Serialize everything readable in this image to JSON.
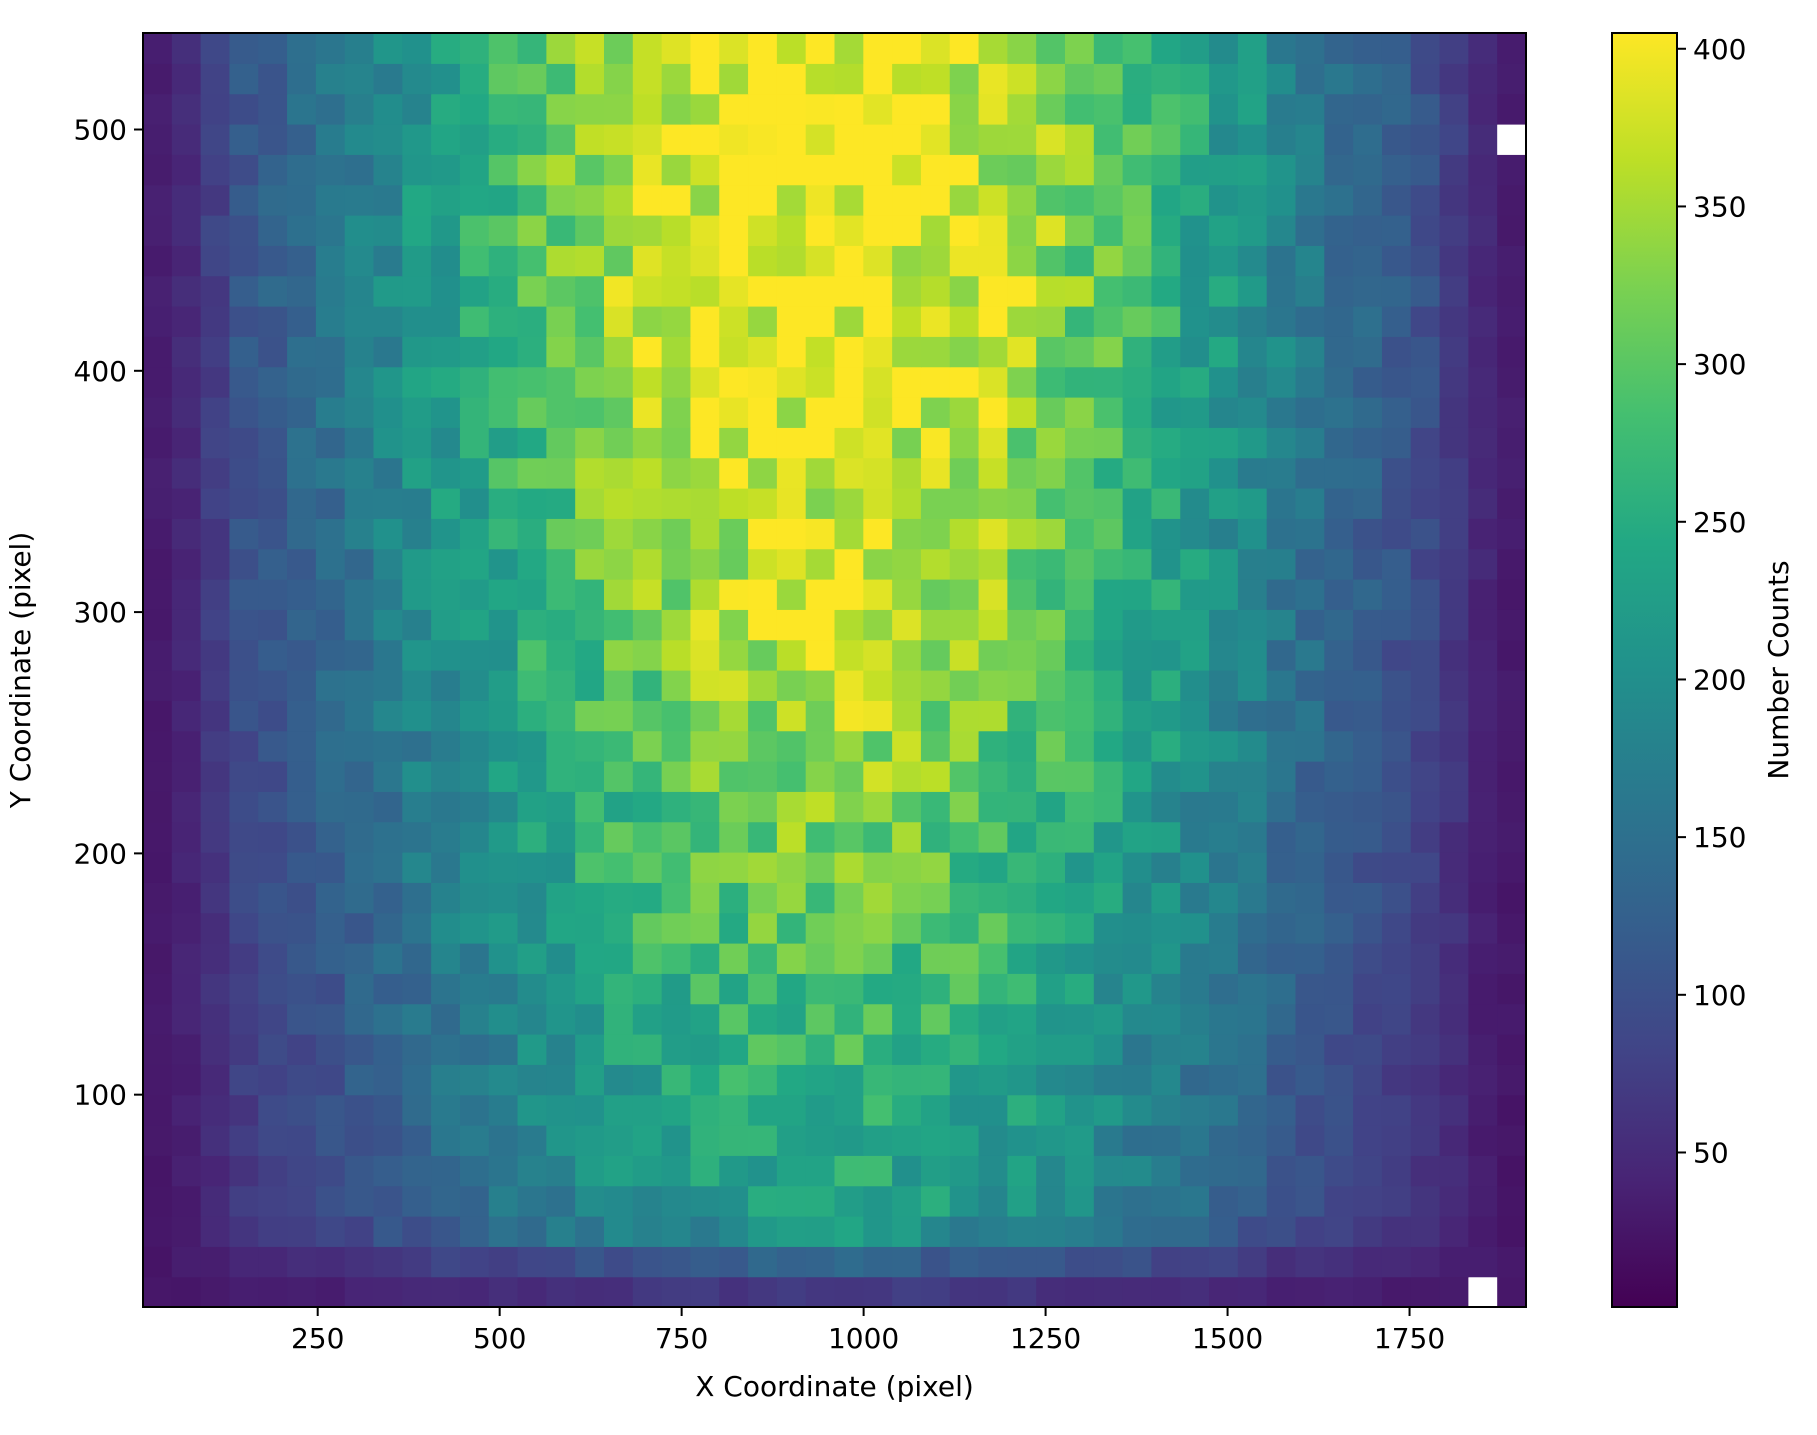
{
  "chart_data": {
    "type": "heatmap",
    "title": "",
    "xlabel": "X Coordinate (pixel)",
    "ylabel": "Y Coordinate (pixel)",
    "colorbar_label": "Number Counts",
    "colormap": "viridis",
    "x_range": [
      10,
      1910
    ],
    "y_range": [
      12,
      540
    ],
    "x_bins": 48,
    "y_bins": 42,
    "x_ticks": [
      250,
      500,
      750,
      1000,
      1250,
      1500,
      1750
    ],
    "y_ticks": [
      100,
      200,
      300,
      400,
      500
    ],
    "color_range": [
      1,
      405
    ],
    "colorbar_ticks": [
      50,
      100,
      150,
      200,
      250,
      300,
      350,
      400
    ],
    "peak_center": {
      "x": 950,
      "y": 510
    },
    "approx_peak_value": 405,
    "empty_bins": [
      {
        "x": 1880,
        "y": 494
      },
      {
        "x": 1845,
        "y": 17
      }
    ]
  }
}
